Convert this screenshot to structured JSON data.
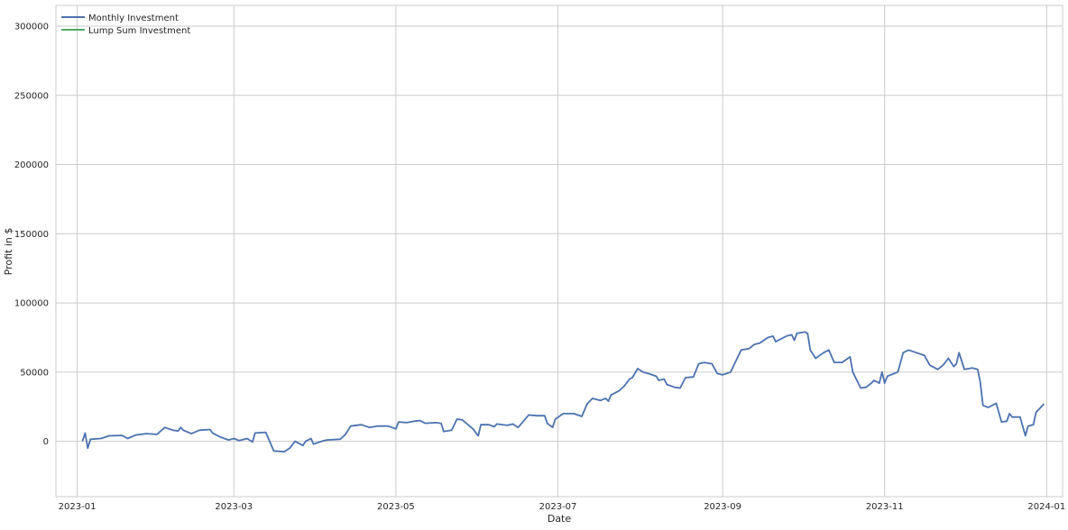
{
  "chart_data": {
    "type": "line",
    "title": "",
    "xlabel": "Date",
    "ylabel": "Profit in $",
    "x_ticks": [
      "2023-01",
      "2023-03",
      "2023-05",
      "2023-07",
      "2023-09",
      "2023-11",
      "2024-01"
    ],
    "y_ticks": [
      "0",
      "50000",
      "100000",
      "150000",
      "200000",
      "250000",
      "300000"
    ],
    "ylim": [
      -40000,
      315000
    ],
    "xlim": [
      "2022-12-24",
      "2024-01-07"
    ],
    "grid": true,
    "legend_position": "top-left",
    "series": [
      {
        "name": "Monthly Investment",
        "color": "#4c72b0",
        "points": [
          [
            "2023-01-03",
            0
          ],
          [
            "2023-01-04",
            6000
          ],
          [
            "2023-01-05",
            -5000
          ],
          [
            "2023-01-06",
            1500
          ],
          [
            "2023-01-10",
            2000
          ],
          [
            "2023-01-13",
            4000
          ],
          [
            "2023-01-18",
            4200
          ],
          [
            "2023-01-20",
            2000
          ],
          [
            "2023-01-23",
            4500
          ],
          [
            "2023-01-27",
            5500
          ],
          [
            "2023-01-31",
            5000
          ],
          [
            "2023-02-03",
            10000
          ],
          [
            "2023-02-06",
            8000
          ],
          [
            "2023-02-08",
            7500
          ],
          [
            "2023-02-09",
            10000
          ],
          [
            "2023-02-10",
            8000
          ],
          [
            "2023-02-13",
            5500
          ],
          [
            "2023-02-16",
            8000
          ],
          [
            "2023-02-20",
            8500
          ],
          [
            "2023-02-21",
            6000
          ],
          [
            "2023-02-24",
            3000
          ],
          [
            "2023-02-27",
            1000
          ],
          [
            "2023-03-01",
            2000
          ],
          [
            "2023-03-03",
            500
          ],
          [
            "2023-03-06",
            2000
          ],
          [
            "2023-03-08",
            -500
          ],
          [
            "2023-03-09",
            6000
          ],
          [
            "2023-03-13",
            6500
          ],
          [
            "2023-03-14",
            2000
          ],
          [
            "2023-03-16",
            -7000
          ],
          [
            "2023-03-20",
            -7500
          ],
          [
            "2023-03-22",
            -5000
          ],
          [
            "2023-03-23",
            -2500
          ],
          [
            "2023-03-24",
            0
          ],
          [
            "2023-03-27",
            -3000
          ],
          [
            "2023-03-28",
            0
          ],
          [
            "2023-03-30",
            2000
          ],
          [
            "2023-03-31",
            -2000
          ],
          [
            "2023-04-03",
            0
          ],
          [
            "2023-04-05",
            1000
          ],
          [
            "2023-04-10",
            1500
          ],
          [
            "2023-04-12",
            5000
          ],
          [
            "2023-04-14",
            11000
          ],
          [
            "2023-04-18",
            12000
          ],
          [
            "2023-04-21",
            10000
          ],
          [
            "2023-04-24",
            11000
          ],
          [
            "2023-04-28",
            11000
          ],
          [
            "2023-05-01",
            9000
          ],
          [
            "2023-05-02",
            14000
          ],
          [
            "2023-05-05",
            13500
          ],
          [
            "2023-05-08",
            14500
          ],
          [
            "2023-05-10",
            15000
          ],
          [
            "2023-05-12",
            13000
          ],
          [
            "2023-05-16",
            13500
          ],
          [
            "2023-05-18",
            13000
          ],
          [
            "2023-05-19",
            7000
          ],
          [
            "2023-05-22",
            8000
          ],
          [
            "2023-05-24",
            16000
          ],
          [
            "2023-05-26",
            15500
          ],
          [
            "2023-05-30",
            9000
          ],
          [
            "2023-06-01",
            4000
          ],
          [
            "2023-06-02",
            12000
          ],
          [
            "2023-06-05",
            12000
          ],
          [
            "2023-06-07",
            10500
          ],
          [
            "2023-06-08",
            12500
          ],
          [
            "2023-06-12",
            11500
          ],
          [
            "2023-06-14",
            12500
          ],
          [
            "2023-06-16",
            10000
          ],
          [
            "2023-06-20",
            19000
          ],
          [
            "2023-06-23",
            18500
          ],
          [
            "2023-06-26",
            18500
          ],
          [
            "2023-06-27",
            13000
          ],
          [
            "2023-06-29",
            10000
          ],
          [
            "2023-06-30",
            16000
          ],
          [
            "2023-07-03",
            20000
          ],
          [
            "2023-07-07",
            20000
          ],
          [
            "2023-07-10",
            18000
          ],
          [
            "2023-07-12",
            27000
          ],
          [
            "2023-07-14",
            31000
          ],
          [
            "2023-07-17",
            29500
          ],
          [
            "2023-07-19",
            31000
          ],
          [
            "2023-07-20",
            29000
          ],
          [
            "2023-07-21",
            33500
          ],
          [
            "2023-07-24",
            36500
          ],
          [
            "2023-07-26",
            40000
          ],
          [
            "2023-07-28",
            45000
          ],
          [
            "2023-07-29",
            46000
          ],
          [
            "2023-07-31",
            52500
          ],
          [
            "2023-08-02",
            50000
          ],
          [
            "2023-08-04",
            49000
          ],
          [
            "2023-08-07",
            47000
          ],
          [
            "2023-08-08",
            44000
          ],
          [
            "2023-08-10",
            45000
          ],
          [
            "2023-08-11",
            41000
          ],
          [
            "2023-08-14",
            39000
          ],
          [
            "2023-08-16",
            38500
          ],
          [
            "2023-08-18",
            46000
          ],
          [
            "2023-08-21",
            46500
          ],
          [
            "2023-08-23",
            56000
          ],
          [
            "2023-08-25",
            57000
          ],
          [
            "2023-08-28",
            56000
          ],
          [
            "2023-08-30",
            49000
          ],
          [
            "2023-09-01",
            48000
          ],
          [
            "2023-09-04",
            50000
          ],
          [
            "2023-09-06",
            58000
          ],
          [
            "2023-09-08",
            66000
          ],
          [
            "2023-09-11",
            67000
          ],
          [
            "2023-09-13",
            70000
          ],
          [
            "2023-09-15",
            71000
          ],
          [
            "2023-09-18",
            75000
          ],
          [
            "2023-09-20",
            76000
          ],
          [
            "2023-09-21",
            72000
          ],
          [
            "2023-09-22",
            73000
          ],
          [
            "2023-09-25",
            76000
          ],
          [
            "2023-09-27",
            77000
          ],
          [
            "2023-09-28",
            73000
          ],
          [
            "2023-09-29",
            78000
          ],
          [
            "2023-10-02",
            79000
          ],
          [
            "2023-10-03",
            78000
          ],
          [
            "2023-10-04",
            66000
          ],
          [
            "2023-10-06",
            60000
          ],
          [
            "2023-10-09",
            64000
          ],
          [
            "2023-10-11",
            66000
          ],
          [
            "2023-10-13",
            57000
          ],
          [
            "2023-10-16",
            57000
          ],
          [
            "2023-10-19",
            61000
          ],
          [
            "2023-10-20",
            50000
          ],
          [
            "2023-10-23",
            38500
          ],
          [
            "2023-10-25",
            39000
          ],
          [
            "2023-10-27",
            42000
          ],
          [
            "2023-10-28",
            44000
          ],
          [
            "2023-10-30",
            42000
          ],
          [
            "2023-10-31",
            50000
          ],
          [
            "2023-11-01",
            42000
          ],
          [
            "2023-11-02",
            47000
          ],
          [
            "2023-11-06",
            50000
          ],
          [
            "2023-11-08",
            64000
          ],
          [
            "2023-11-10",
            66000
          ],
          [
            "2023-11-13",
            64000
          ],
          [
            "2023-11-16",
            62000
          ],
          [
            "2023-11-18",
            55000
          ],
          [
            "2023-11-21",
            52000
          ],
          [
            "2023-11-23",
            55000
          ],
          [
            "2023-11-25",
            60000
          ],
          [
            "2023-11-27",
            54000
          ],
          [
            "2023-11-28",
            56000
          ],
          [
            "2023-11-29",
            64000
          ],
          [
            "2023-12-01",
            52000
          ],
          [
            "2023-12-04",
            53000
          ],
          [
            "2023-12-06",
            52000
          ],
          [
            "2023-12-07",
            43000
          ],
          [
            "2023-12-08",
            26000
          ],
          [
            "2023-12-10",
            24500
          ],
          [
            "2023-12-13",
            27500
          ],
          [
            "2023-12-15",
            14000
          ],
          [
            "2023-12-17",
            14500
          ],
          [
            "2023-12-18",
            20000
          ],
          [
            "2023-12-19",
            17500
          ],
          [
            "2023-12-22",
            17500
          ],
          [
            "2023-12-24",
            4000
          ],
          [
            "2023-12-25",
            11000
          ],
          [
            "2023-12-27",
            12000
          ],
          [
            "2023-12-28",
            21000
          ],
          [
            "2023-12-31",
            27000
          ]
        ]
      },
      {
        "name": "Lump Sum Investment",
        "color": "#55a868",
        "points": []
      }
    ]
  }
}
